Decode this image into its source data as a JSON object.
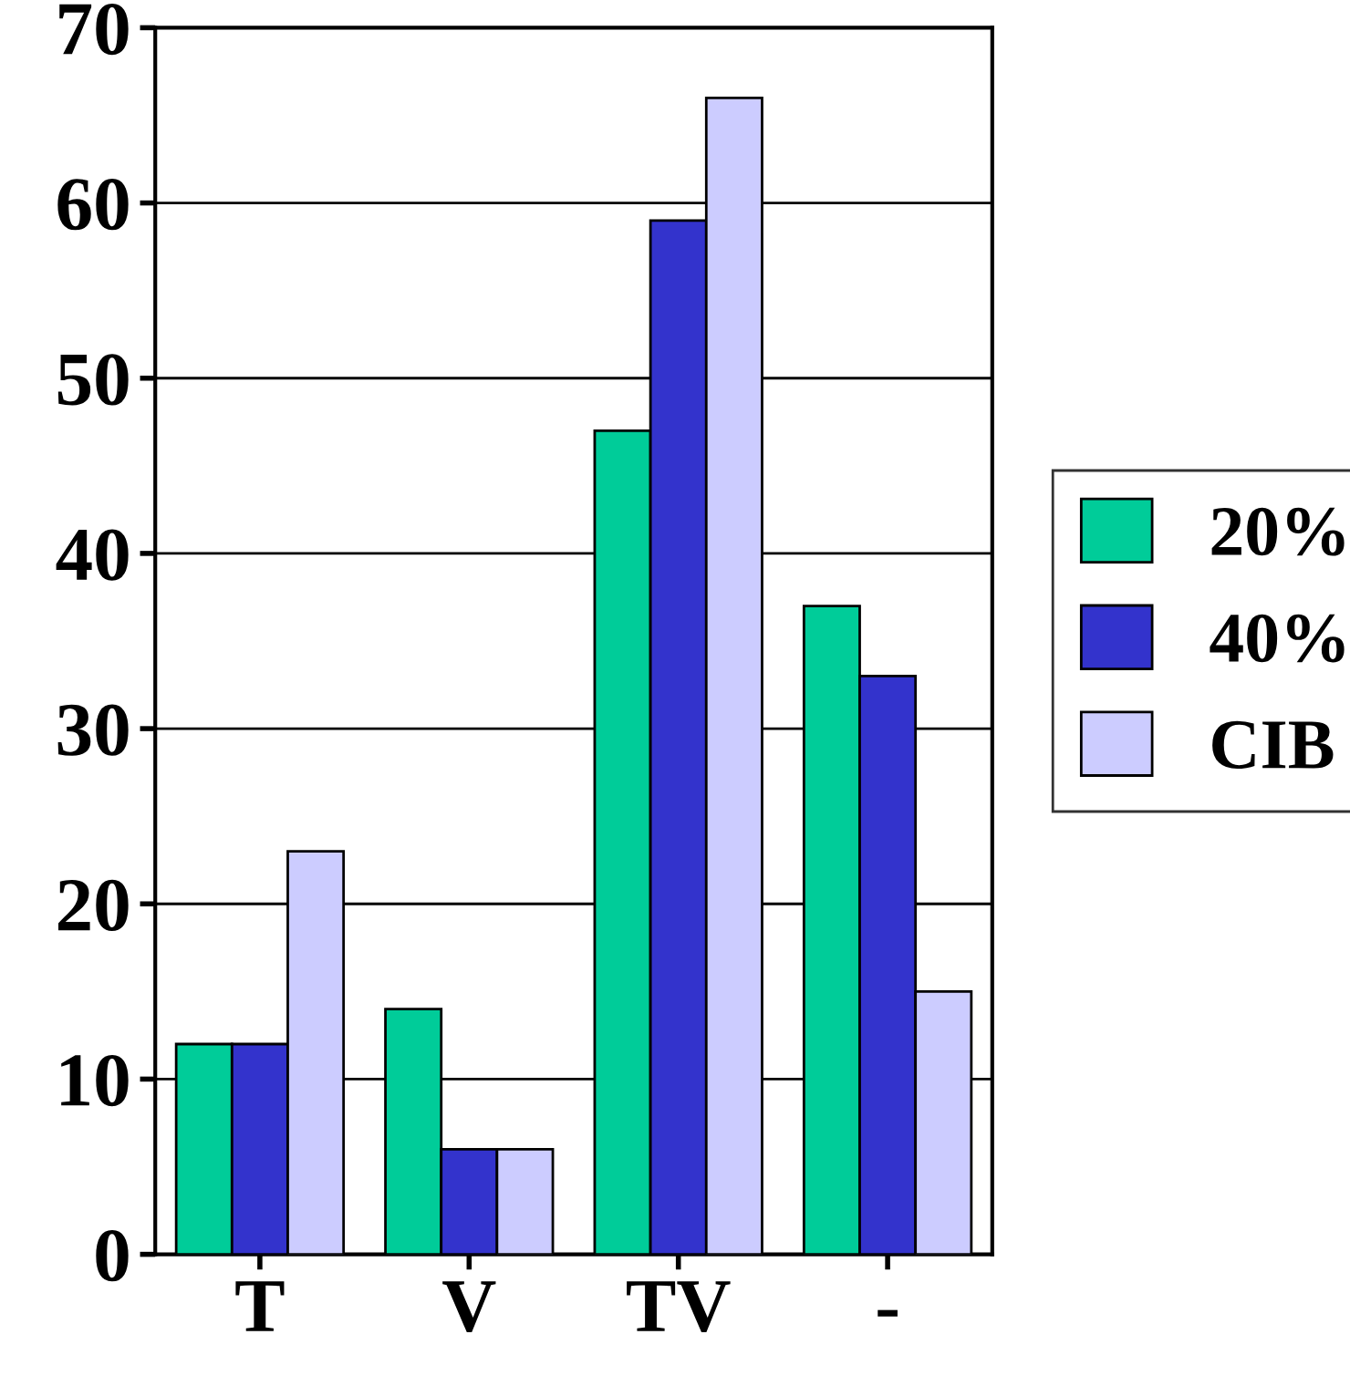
{
  "chart_data": {
    "type": "bar",
    "categories": [
      "T",
      "V",
      "TV",
      "-"
    ],
    "series": [
      {
        "name": "20%",
        "color": "#00cc99",
        "values": [
          12,
          14,
          47,
          37
        ]
      },
      {
        "name": "40%",
        "color": "#3333cc",
        "values": [
          12,
          6,
          59,
          33
        ]
      },
      {
        "name": "CIB",
        "color": "#ccccff",
        "values": [
          23,
          6,
          66,
          15
        ]
      }
    ],
    "ylim": [
      0,
      70
    ],
    "yticks": [
      0,
      10,
      20,
      30,
      40,
      50,
      60,
      70
    ],
    "grid": "y",
    "legend": "right"
  }
}
